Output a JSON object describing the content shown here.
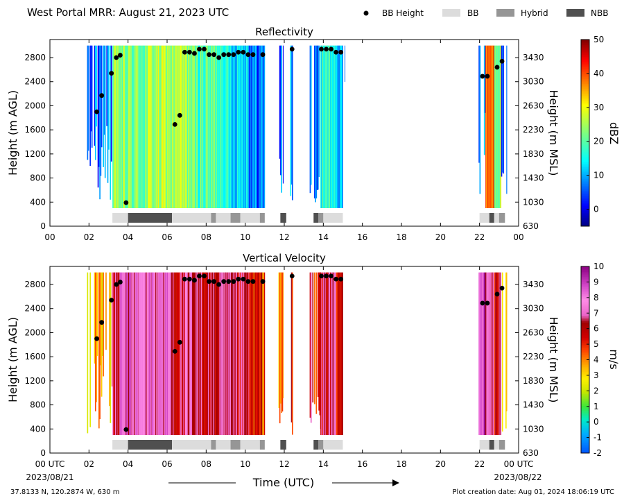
{
  "header": {
    "title": "West Portal MRR:  August 21, 2023 UTC",
    "legend": [
      {
        "label": "BB Height",
        "kind": "dot",
        "color": "#000000"
      },
      {
        "label": "BB",
        "kind": "box",
        "color": "#dcdcdc"
      },
      {
        "label": "Hybrid",
        "kind": "box",
        "color": "#969696"
      },
      {
        "label": "NBB",
        "kind": "box",
        "color": "#505050"
      }
    ]
  },
  "footer": {
    "location": "37.8133 N, 120.2874 W, 630 m",
    "created": "Plot creation date: Aug 01, 2024 18:06:19 UTC",
    "date_start": "2023/08/21",
    "date_end": "2023/08/22"
  },
  "chart_data": [
    {
      "type": "heatmap",
      "title": "Reflectivity",
      "xlabel": "",
      "ylabel": "Height (m AGL)",
      "ylabel2": "Height (m MSL)",
      "xlim": [
        0,
        24
      ],
      "ylim": [
        0,
        3100
      ],
      "xticks": [
        "00",
        "02",
        "04",
        "06",
        "08",
        "10",
        "12",
        "14",
        "16",
        "18",
        "20",
        "22",
        "00"
      ],
      "yticks": [
        0,
        400,
        800,
        1200,
        1600,
        2000,
        2400,
        2800
      ],
      "yticks2": [
        630,
        1030,
        1430,
        1830,
        2230,
        2630,
        3030,
        3430
      ],
      "colorbar": {
        "label": "dBZ",
        "min": -5,
        "max": 50,
        "ticks": [
          0,
          10,
          20,
          30,
          40,
          50
        ],
        "scale": "jet"
      },
      "bb_height": [
        {
          "t": 2.4,
          "h": 1900
        },
        {
          "t": 2.65,
          "h": 2170
        },
        {
          "t": 3.15,
          "h": 2540
        },
        {
          "t": 3.4,
          "h": 2800
        },
        {
          "t": 3.6,
          "h": 2840
        },
        {
          "t": 3.9,
          "h": 390
        },
        {
          "t": 6.4,
          "h": 1690
        },
        {
          "t": 6.65,
          "h": 1840
        },
        {
          "t": 6.9,
          "h": 2890
        },
        {
          "t": 7.15,
          "h": 2890
        },
        {
          "t": 7.4,
          "h": 2870
        },
        {
          "t": 7.65,
          "h": 2940
        },
        {
          "t": 7.9,
          "h": 2940
        },
        {
          "t": 8.15,
          "h": 2850
        },
        {
          "t": 8.4,
          "h": 2850
        },
        {
          "t": 8.65,
          "h": 2800
        },
        {
          "t": 8.9,
          "h": 2850
        },
        {
          "t": 9.15,
          "h": 2850
        },
        {
          "t": 9.4,
          "h": 2850
        },
        {
          "t": 9.65,
          "h": 2890
        },
        {
          "t": 9.9,
          "h": 2890
        },
        {
          "t": 10.15,
          "h": 2850
        },
        {
          "t": 10.4,
          "h": 2850
        },
        {
          "t": 10.9,
          "h": 2850
        },
        {
          "t": 12.4,
          "h": 2940
        },
        {
          "t": 13.9,
          "h": 2940
        },
        {
          "t": 14.15,
          "h": 2940
        },
        {
          "t": 14.4,
          "h": 2940
        },
        {
          "t": 14.65,
          "h": 2890
        },
        {
          "t": 14.9,
          "h": 2890
        },
        {
          "t": 22.15,
          "h": 2490
        },
        {
          "t": 22.4,
          "h": 2490
        },
        {
          "t": 22.9,
          "h": 2640
        },
        {
          "t": 23.15,
          "h": 2740
        }
      ],
      "bb_type": [
        {
          "start": 3.2,
          "end": 4.0,
          "type": "BB"
        },
        {
          "start": 4.0,
          "end": 6.25,
          "type": "NBB"
        },
        {
          "start": 6.25,
          "end": 8.25,
          "type": "BB"
        },
        {
          "start": 8.25,
          "end": 8.5,
          "type": "Hybrid"
        },
        {
          "start": 8.5,
          "end": 9.25,
          "type": "BB"
        },
        {
          "start": 9.25,
          "end": 9.75,
          "type": "Hybrid"
        },
        {
          "start": 9.75,
          "end": 10.75,
          "type": "BB"
        },
        {
          "start": 10.75,
          "end": 11.0,
          "type": "Hybrid"
        },
        {
          "start": 11.8,
          "end": 12.1,
          "type": "NBB"
        },
        {
          "start": 13.5,
          "end": 13.75,
          "type": "NBB"
        },
        {
          "start": 13.75,
          "end": 14.0,
          "type": "Hybrid"
        },
        {
          "start": 14.0,
          "end": 15.0,
          "type": "BB"
        },
        {
          "start": 22.0,
          "end": 22.5,
          "type": "BB"
        },
        {
          "start": 22.5,
          "end": 22.75,
          "type": "NBB"
        },
        {
          "start": 22.75,
          "end": 23.0,
          "type": "BB"
        },
        {
          "start": 23.0,
          "end": 23.3,
          "type": "Hybrid"
        }
      ],
      "segments": [
        {
          "start": 1.9,
          "end": 3.2,
          "mode": "sparse",
          "base": 6,
          "bottom_min": 300,
          "bottom_max": 1900
        },
        {
          "start": 3.2,
          "end": 5.0,
          "mode": "fill",
          "base": 22
        },
        {
          "start": 5.0,
          "end": 7.2,
          "mode": "fill",
          "base": 25
        },
        {
          "start": 7.2,
          "end": 9.0,
          "mode": "fill",
          "base": 20
        },
        {
          "start": 9.0,
          "end": 10.2,
          "mode": "fill",
          "base": 14
        },
        {
          "start": 10.2,
          "end": 11.0,
          "mode": "fill",
          "base": 7
        },
        {
          "start": 11.7,
          "end": 11.95,
          "mode": "sparse",
          "base": 6,
          "bottom_min": 300,
          "bottom_max": 1200
        },
        {
          "start": 12.3,
          "end": 12.45,
          "mode": "sparse",
          "base": 12,
          "bottom_min": 300,
          "bottom_max": 800
        },
        {
          "start": 13.3,
          "end": 13.85,
          "mode": "sparse",
          "base": 5,
          "bottom_min": 300,
          "bottom_max": 1000
        },
        {
          "start": 13.85,
          "end": 14.65,
          "mode": "fill",
          "base": 17
        },
        {
          "start": 14.65,
          "end": 15.0,
          "mode": "fill",
          "base": 9
        },
        {
          "start": 15.0,
          "end": 15.1,
          "mode": "sparse",
          "base": 12,
          "bottom_min": 2200,
          "bottom_max": 2900
        },
        {
          "start": 21.95,
          "end": 22.3,
          "mode": "sparse",
          "base": 8,
          "bottom_min": 400,
          "bottom_max": 2000
        },
        {
          "start": 22.3,
          "end": 22.75,
          "mode": "fill",
          "base": 40
        },
        {
          "start": 22.75,
          "end": 23.1,
          "mode": "fill",
          "base": 26
        },
        {
          "start": 23.1,
          "end": 23.4,
          "mode": "sparse",
          "base": 8,
          "bottom_min": 300,
          "bottom_max": 900
        }
      ]
    },
    {
      "type": "heatmap",
      "title": "Vertical Velocity",
      "xlabel": "Time (UTC)",
      "ylabel": "Height (m AGL)",
      "ylabel2": "Height (m MSL)",
      "xlim": [
        0,
        24
      ],
      "ylim": [
        0,
        3100
      ],
      "xticks": [
        "00 UTC",
        "02",
        "04",
        "06",
        "08",
        "10",
        "12",
        "14",
        "16",
        "18",
        "20",
        "22",
        "00 UTC"
      ],
      "yticks": [
        0,
        400,
        800,
        1200,
        1600,
        2000,
        2400,
        2800
      ],
      "yticks2": [
        630,
        1030,
        1430,
        1830,
        2230,
        2630,
        3030,
        3430
      ],
      "colorbar": {
        "label": "m/s",
        "min": -2,
        "max": 10,
        "ticks": [
          -2,
          -1,
          0,
          1,
          2,
          3,
          4,
          5,
          6,
          7,
          8,
          9,
          10
        ],
        "scale": "velocity"
      },
      "bb_height": [
        {
          "t": 2.4,
          "h": 1900
        },
        {
          "t": 2.65,
          "h": 2170
        },
        {
          "t": 3.15,
          "h": 2540
        },
        {
          "t": 3.4,
          "h": 2800
        },
        {
          "t": 3.6,
          "h": 2840
        },
        {
          "t": 3.9,
          "h": 390
        },
        {
          "t": 6.4,
          "h": 1690
        },
        {
          "t": 6.65,
          "h": 1840
        },
        {
          "t": 6.9,
          "h": 2890
        },
        {
          "t": 7.15,
          "h": 2890
        },
        {
          "t": 7.4,
          "h": 2870
        },
        {
          "t": 7.65,
          "h": 2940
        },
        {
          "t": 7.9,
          "h": 2940
        },
        {
          "t": 8.15,
          "h": 2850
        },
        {
          "t": 8.4,
          "h": 2850
        },
        {
          "t": 8.65,
          "h": 2800
        },
        {
          "t": 8.9,
          "h": 2850
        },
        {
          "t": 9.15,
          "h": 2850
        },
        {
          "t": 9.4,
          "h": 2850
        },
        {
          "t": 9.65,
          "h": 2890
        },
        {
          "t": 9.9,
          "h": 2890
        },
        {
          "t": 10.15,
          "h": 2850
        },
        {
          "t": 10.4,
          "h": 2850
        },
        {
          "t": 10.9,
          "h": 2850
        },
        {
          "t": 12.4,
          "h": 2940
        },
        {
          "t": 13.9,
          "h": 2940
        },
        {
          "t": 14.15,
          "h": 2940
        },
        {
          "t": 14.4,
          "h": 2940
        },
        {
          "t": 14.65,
          "h": 2890
        },
        {
          "t": 14.9,
          "h": 2890
        },
        {
          "t": 22.15,
          "h": 2490
        },
        {
          "t": 22.4,
          "h": 2490
        },
        {
          "t": 22.9,
          "h": 2640
        },
        {
          "t": 23.15,
          "h": 2740
        }
      ],
      "bb_type": [
        {
          "start": 3.2,
          "end": 4.0,
          "type": "BB"
        },
        {
          "start": 4.0,
          "end": 6.25,
          "type": "NBB"
        },
        {
          "start": 6.25,
          "end": 8.25,
          "type": "BB"
        },
        {
          "start": 8.25,
          "end": 8.5,
          "type": "Hybrid"
        },
        {
          "start": 8.5,
          "end": 9.25,
          "type": "BB"
        },
        {
          "start": 9.25,
          "end": 9.75,
          "type": "Hybrid"
        },
        {
          "start": 9.75,
          "end": 10.75,
          "type": "BB"
        },
        {
          "start": 10.75,
          "end": 11.0,
          "type": "Hybrid"
        },
        {
          "start": 11.8,
          "end": 12.1,
          "type": "NBB"
        },
        {
          "start": 13.5,
          "end": 13.75,
          "type": "NBB"
        },
        {
          "start": 13.75,
          "end": 14.0,
          "type": "Hybrid"
        },
        {
          "start": 14.0,
          "end": 15.0,
          "type": "BB"
        },
        {
          "start": 22.0,
          "end": 22.5,
          "type": "BB"
        },
        {
          "start": 22.5,
          "end": 22.75,
          "type": "NBB"
        },
        {
          "start": 22.75,
          "end": 23.0,
          "type": "BB"
        },
        {
          "start": 23.0,
          "end": 23.3,
          "type": "Hybrid"
        }
      ],
      "segments": [
        {
          "start": 1.9,
          "end": 3.2,
          "mode": "sparse",
          "base": 3.5,
          "bottom_min": 300,
          "bottom_max": 1900
        },
        {
          "start": 3.2,
          "end": 3.6,
          "mode": "fill",
          "base": 6.3
        },
        {
          "start": 3.6,
          "end": 6.2,
          "mode": "fill",
          "base": 7.6
        },
        {
          "start": 6.2,
          "end": 9.0,
          "mode": "fill",
          "base": 6.3
        },
        {
          "start": 9.0,
          "end": 10.2,
          "mode": "fill",
          "base": 6.0
        },
        {
          "start": 10.2,
          "end": 11.0,
          "mode": "fill",
          "base": 5.0
        },
        {
          "start": 11.7,
          "end": 11.95,
          "mode": "sparse",
          "base": 4.0,
          "bottom_min": 300,
          "bottom_max": 1200
        },
        {
          "start": 12.3,
          "end": 12.45,
          "mode": "sparse",
          "base": 5.5,
          "bottom_min": 300,
          "bottom_max": 800
        },
        {
          "start": 13.3,
          "end": 13.85,
          "mode": "sparse",
          "base": 5.5,
          "bottom_min": 300,
          "bottom_max": 1000
        },
        {
          "start": 13.85,
          "end": 14.65,
          "mode": "fill",
          "base": 6.2
        },
        {
          "start": 14.65,
          "end": 15.0,
          "mode": "fill",
          "base": 5.5
        },
        {
          "start": 15.0,
          "end": 15.1,
          "mode": "sparse",
          "base": 3.0,
          "bottom_min": 2200,
          "bottom_max": 2900
        },
        {
          "start": 21.95,
          "end": 22.3,
          "mode": "fill",
          "base": 8.6
        },
        {
          "start": 22.3,
          "end": 22.75,
          "mode": "fill",
          "base": 7.0
        },
        {
          "start": 22.75,
          "end": 23.1,
          "mode": "fill",
          "base": 5.5
        },
        {
          "start": 23.1,
          "end": 23.4,
          "mode": "sparse",
          "base": 3.2,
          "bottom_min": 300,
          "bottom_max": 900
        }
      ]
    }
  ]
}
